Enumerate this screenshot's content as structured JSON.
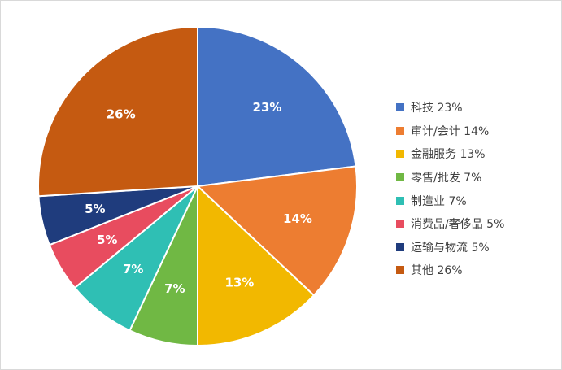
{
  "chart_data": {
    "type": "pie",
    "title": "",
    "legend_position": "right",
    "data_labels": "inside, bold, white",
    "slices": [
      {
        "name": "科技",
        "value": 23,
        "label": "23%",
        "legend": "科技 23%",
        "color": "#4472C4"
      },
      {
        "name": "审计/会计",
        "value": 14,
        "label": "14%",
        "legend": "审计/会计 14%",
        "color": "#ED7D31"
      },
      {
        "name": "金融服务",
        "value": 13,
        "label": "13%",
        "legend": "金融服务 13%",
        "color": "#F2B800"
      },
      {
        "name": "零售/批发",
        "value": 7,
        "label": "7%",
        "legend": "零售/批发 7%",
        "color": "#70B844"
      },
      {
        "name": "制造业",
        "value": 7,
        "label": "7%",
        "legend": "制造业 7%",
        "color": "#2FBFB4"
      },
      {
        "name": "消费品/奢侈品",
        "value": 5,
        "label": "5%",
        "legend": "消费品/奢侈品 5%",
        "color": "#E84C5F"
      },
      {
        "name": "运输与物流",
        "value": 5,
        "label": "5%",
        "legend": "运输与物流 5%",
        "color": "#1F3C7D"
      },
      {
        "name": "其他",
        "value": 26,
        "label": "26%",
        "legend": "其他 26%",
        "color": "#C55A11"
      }
    ]
  }
}
